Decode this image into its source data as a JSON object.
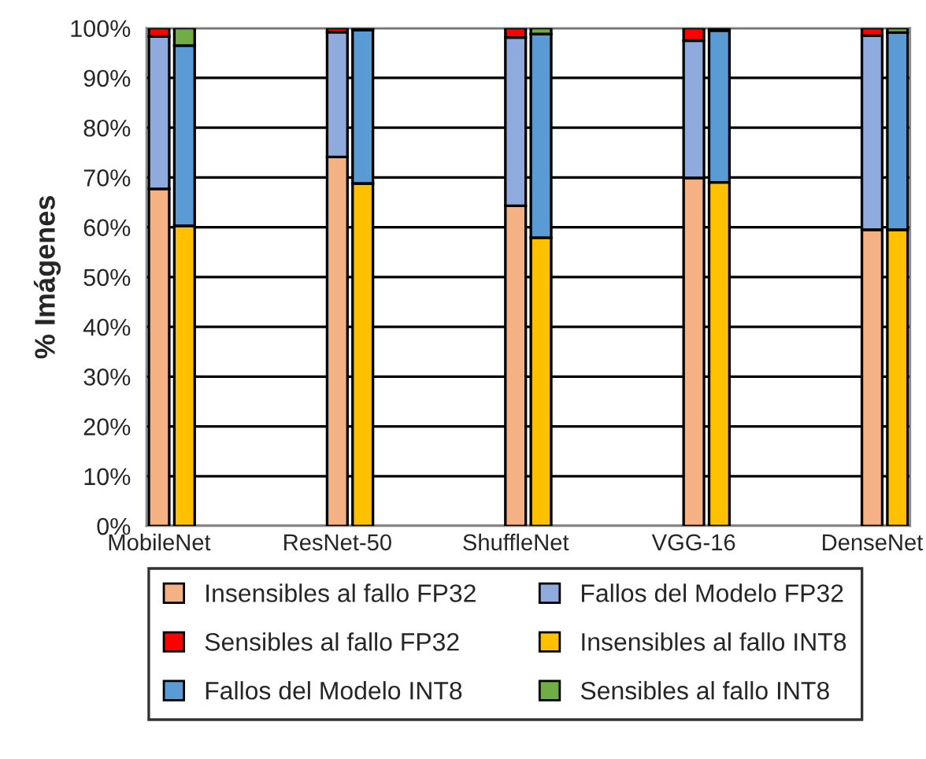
{
  "chart_data": {
    "type": "bar",
    "stacked": true,
    "ylabel": "% Imágenes",
    "categories": [
      "MobileNet",
      null,
      null,
      null,
      null,
      null,
      null,
      "ResNet-50",
      null,
      null,
      null,
      null,
      null,
      null,
      "ShuffleNet",
      null,
      null,
      null,
      null,
      null,
      null,
      "VGG-16",
      null,
      null,
      null,
      null,
      null,
      null,
      "DenseNet",
      null
    ],
    "series": [
      {
        "name": "Insensibles al fallo FP32",
        "color": "#f4b183",
        "values": [
          67.7,
          null,
          null,
          null,
          null,
          null,
          null,
          74.1,
          null,
          null,
          null,
          null,
          null,
          null,
          64.3,
          null,
          null,
          null,
          null,
          null,
          null,
          69.9,
          null,
          null,
          null,
          null,
          null,
          null,
          59.5,
          null
        ]
      },
      {
        "name": "Fallos del Modelo FP32",
        "color": "#8faadc",
        "values": [
          30.6,
          null,
          null,
          null,
          null,
          null,
          null,
          25.1,
          null,
          null,
          null,
          null,
          null,
          null,
          33.8,
          null,
          null,
          null,
          null,
          null,
          null,
          27.6,
          null,
          null,
          null,
          null,
          null,
          null,
          39.0,
          null
        ]
      },
      {
        "name": "Sensibles al fallo FP32",
        "color": "#ff0000",
        "values": [
          1.7,
          null,
          null,
          null,
          null,
          null,
          null,
          0.8,
          null,
          null,
          null,
          null,
          null,
          null,
          1.9,
          null,
          null,
          null,
          null,
          null,
          null,
          2.5,
          null,
          null,
          null,
          null,
          null,
          null,
          1.5,
          null
        ]
      },
      {
        "name": "Insensibles al fallo INT8",
        "color": "#ffc000",
        "values": [
          null,
          60.3,
          null,
          null,
          null,
          null,
          null,
          null,
          68.8,
          null,
          null,
          null,
          null,
          null,
          null,
          57.9,
          null,
          null,
          null,
          null,
          null,
          null,
          69.0,
          null,
          null,
          null,
          null,
          null,
          null,
          59.5
        ]
      },
      {
        "name": "Fallos del Modelo INT8",
        "color": "#5b9bd5",
        "values": [
          null,
          36.2,
          null,
          null,
          null,
          null,
          null,
          null,
          30.8,
          null,
          null,
          null,
          null,
          null,
          null,
          40.9,
          null,
          null,
          null,
          null,
          null,
          null,
          30.5,
          null,
          null,
          null,
          null,
          null,
          null,
          39.6
        ]
      },
      {
        "name": "Sensibles al fallo INT8",
        "color": "#70ad47",
        "values": [
          null,
          3.5,
          null,
          null,
          null,
          null,
          null,
          null,
          0.4,
          null,
          null,
          null,
          null,
          null,
          null,
          1.2,
          null,
          null,
          null,
          null,
          null,
          null,
          0.5,
          null,
          null,
          null,
          null,
          null,
          null,
          0.9
        ]
      }
    ],
    "ylim": [
      0,
      100
    ],
    "yticks": [
      {
        "value": 0,
        "label": "0%"
      },
      {
        "value": 10,
        "label": "10%"
      },
      {
        "value": 20,
        "label": "20%"
      },
      {
        "value": 30,
        "label": "30%"
      },
      {
        "value": 40,
        "label": "40%"
      },
      {
        "value": 50,
        "label": "50%"
      },
      {
        "value": 60,
        "label": "60%"
      },
      {
        "value": 70,
        "label": "70%"
      },
      {
        "value": 80,
        "label": "80%"
      },
      {
        "value": 90,
        "label": "90%"
      },
      {
        "value": 100,
        "label": "100%"
      }
    ],
    "grid": "y",
    "legend": "bottom"
  }
}
